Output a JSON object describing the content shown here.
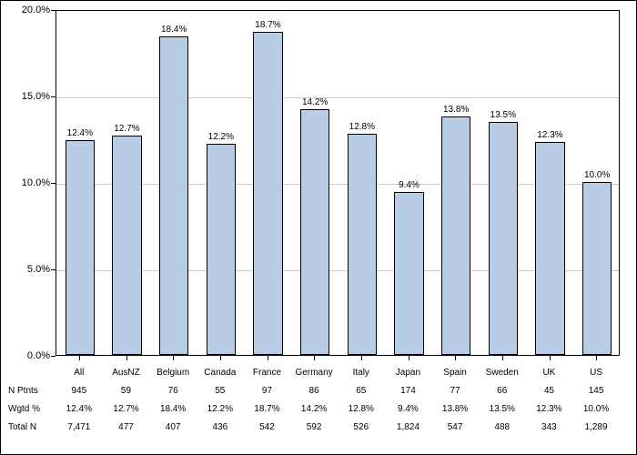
{
  "chart": {
    "type": "bar",
    "ylim": [
      0,
      20
    ],
    "ytick_step": 5,
    "ytick_format": "percent",
    "background_color": "#ffffff",
    "grid_color": "#cccccc",
    "border_color": "#000000",
    "bar_color": "#b8cce4",
    "bar_border_color": "#000000",
    "label_fontsize": 11,
    "bar_label_fontsize": 10,
    "table_fontsize": 10,
    "bar_width_ratio": 0.62,
    "categories": [
      "All",
      "AusNZ",
      "Belgium",
      "Canada",
      "France",
      "Germany",
      "Italy",
      "Japan",
      "Spain",
      "Sweden",
      "UK",
      "US"
    ],
    "values": [
      12.4,
      12.7,
      18.4,
      12.2,
      18.7,
      14.2,
      12.8,
      9.4,
      13.8,
      13.5,
      12.3,
      10.0
    ],
    "value_labels": [
      "12.4%",
      "12.7%",
      "18.4%",
      "12.2%",
      "18.7%",
      "14.2%",
      "12.8%",
      "9.4%",
      "13.8%",
      "13.5%",
      "12.3%",
      "10.0%"
    ],
    "y_ticks": [
      {
        "value": 0,
        "label": "0.0%"
      },
      {
        "value": 5,
        "label": "5.0%"
      },
      {
        "value": 10,
        "label": "10.0%"
      },
      {
        "value": 15,
        "label": "15.0%"
      },
      {
        "value": 20,
        "label": "20.0%"
      }
    ],
    "table_rows": [
      {
        "label": "",
        "cells": [
          "All",
          "AusNZ",
          "Belgium",
          "Canada",
          "France",
          "Germany",
          "Italy",
          "Japan",
          "Spain",
          "Sweden",
          "UK",
          "US"
        ]
      },
      {
        "label": "N Ptnts",
        "cells": [
          "945",
          "59",
          "76",
          "55",
          "97",
          "86",
          "65",
          "174",
          "77",
          "66",
          "45",
          "145"
        ]
      },
      {
        "label": "Wgtd %",
        "cells": [
          "12.4%",
          "12.7%",
          "18.4%",
          "12.2%",
          "18.7%",
          "14.2%",
          "12.8%",
          "9.4%",
          "13.8%",
          "13.5%",
          "12.3%",
          "10.0%"
        ]
      },
      {
        "label": "Total N",
        "cells": [
          "7,471",
          "477",
          "407",
          "436",
          "542",
          "592",
          "526",
          "1,824",
          "547",
          "488",
          "343",
          "1,289"
        ]
      }
    ]
  }
}
